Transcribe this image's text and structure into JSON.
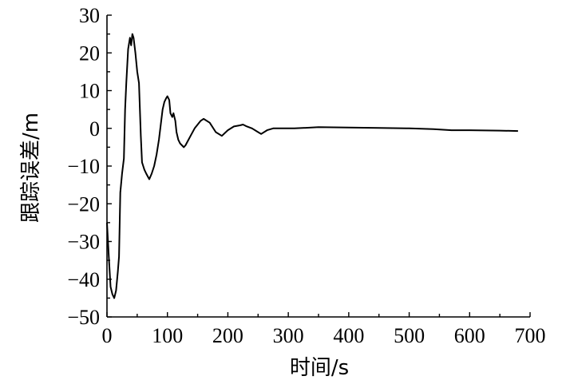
{
  "chart_data": {
    "type": "line",
    "title": "",
    "xlabel": "时间/s",
    "ylabel": "跟踪误差/m",
    "xlim": [
      0,
      700
    ],
    "ylim": [
      -50,
      30
    ],
    "x_ticks": [
      0,
      100,
      200,
      300,
      400,
      500,
      600,
      700
    ],
    "x_tick_labels": [
      "0",
      "100",
      "200",
      "300",
      "400",
      "500",
      "600",
      "700"
    ],
    "y_ticks": [
      30,
      20,
      10,
      0,
      -10,
      -20,
      -30,
      -40,
      -50
    ],
    "y_tick_labels": [
      "30",
      "20",
      "10",
      "0",
      "−10",
      "−20",
      "−30",
      "−40",
      "−50"
    ],
    "grid": false,
    "series": [
      {
        "x": [
          0,
          3,
          6,
          9,
          12,
          15,
          18,
          20,
          22,
          25,
          28,
          30,
          32,
          35,
          38,
          40,
          42,
          44,
          47,
          50,
          53,
          56,
          58,
          60,
          62,
          65,
          70,
          74,
          78,
          82,
          86,
          89,
          92,
          95,
          98,
          100,
          103,
          105,
          108,
          110,
          113,
          115,
          118,
          121,
          124,
          127,
          130,
          135,
          140,
          145,
          150,
          155,
          160,
          170,
          180,
          190,
          200,
          210,
          220,
          225,
          230,
          240,
          250,
          255,
          265,
          275,
          280,
          300,
          310,
          350,
          400,
          450,
          500,
          540,
          570,
          600,
          650,
          680
        ],
        "y": [
          -25,
          -34,
          -42,
          -44,
          -45,
          -43,
          -38,
          -34,
          -17,
          -12,
          -8,
          5,
          12,
          21,
          24,
          22,
          25,
          24,
          20,
          15,
          12,
          -2,
          -9,
          -10,
          -11,
          -12,
          -13.5,
          -12,
          -10,
          -7,
          -3,
          1,
          5,
          7,
          8,
          8.5,
          7.5,
          4,
          3,
          4,
          2,
          -1,
          -3,
          -4,
          -4.5,
          -5,
          -4.5,
          -3,
          -1.5,
          0,
          1,
          2,
          2.5,
          1.5,
          -1,
          -2,
          -0.5,
          0.5,
          0.8,
          1,
          0.6,
          0,
          -1,
          -1.5,
          -0.5,
          0,
          0,
          0,
          0,
          0.3,
          0.2,
          0.1,
          0,
          -0.2,
          -0.5,
          -0.5,
          -0.6,
          -0.7
        ]
      }
    ]
  }
}
